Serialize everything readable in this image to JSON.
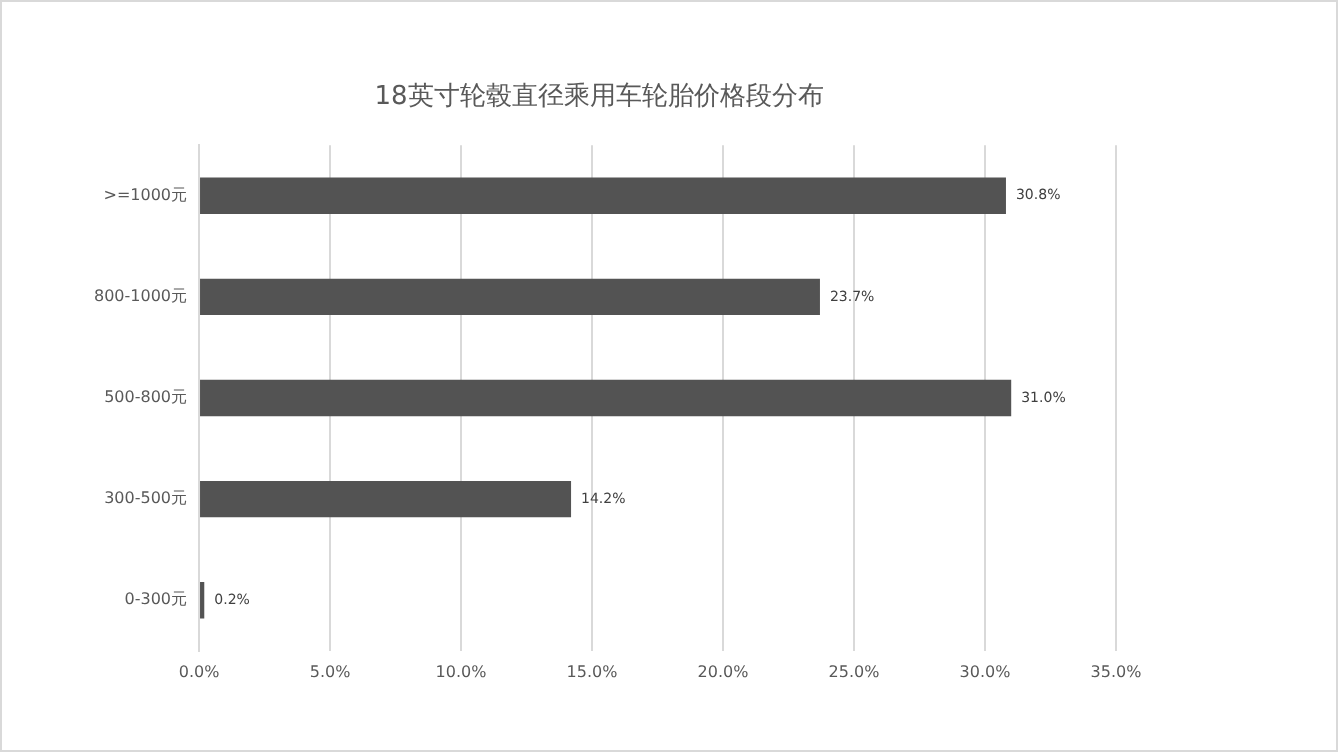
{
  "chart_data": {
    "type": "bar",
    "orientation": "horizontal",
    "title": "18英寸轮毂直径乘用车轮胎价格段分布",
    "categories": [
      ">=1000元",
      "800-1000元",
      "500-800元",
      "300-500元",
      "0-300元"
    ],
    "values": [
      30.8,
      23.7,
      31.0,
      14.2,
      0.2
    ],
    "value_labels": [
      "30.8%",
      "23.7%",
      "31.0%",
      "14.2%",
      "0.2%"
    ],
    "color": "#535353",
    "xlim": [
      0,
      35
    ],
    "xticks": [
      {
        "value": 0,
        "label": "0.0%"
      },
      {
        "value": 5,
        "label": "5.0%"
      },
      {
        "value": 10,
        "label": "10.0%"
      },
      {
        "value": 15,
        "label": "15.0%"
      },
      {
        "value": 20,
        "label": "20.0%"
      },
      {
        "value": 25,
        "label": "25.0%"
      },
      {
        "value": 30,
        "label": "30.0%"
      },
      {
        "value": 35,
        "label": "35.0%"
      }
    ],
    "grid": "x",
    "legend": false
  }
}
